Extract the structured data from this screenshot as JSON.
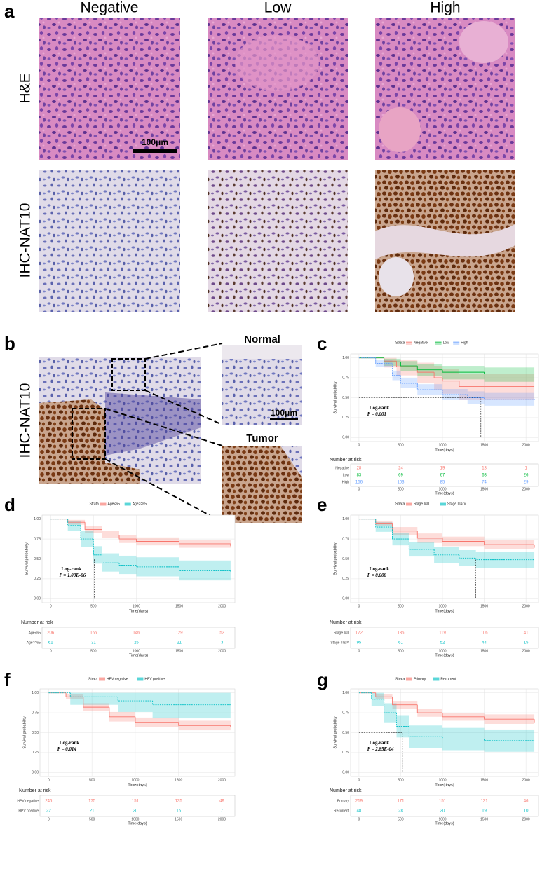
{
  "figure": {
    "a": {
      "label": "a",
      "columns": [
        "Negative",
        "Low",
        "High"
      ],
      "rows": [
        "H&E",
        "IHC-NAT10"
      ],
      "scale_bar": "100μm"
    },
    "b": {
      "label": "b",
      "row": "IHC-NAT10",
      "insets": [
        "Normal",
        "Tumor"
      ],
      "scale_bar": "100μm"
    }
  },
  "chart_data": [
    {
      "type": "survival",
      "label": "c",
      "legend_title": "Strata",
      "xlabel": "Time(days)",
      "ylabel": "Survival probability",
      "xlim": [
        -100,
        2150
      ],
      "ylim": [
        -0.05,
        1.05
      ],
      "xticks": [
        0,
        500,
        1000,
        1500,
        2000
      ],
      "yticks": [
        {
          "value": 0,
          "label": "0.00"
        },
        {
          "value": 0.25,
          "label": "0.25"
        },
        {
          "value": 0.5,
          "label": "0.50"
        },
        {
          "value": 0.75,
          "label": "0.75"
        },
        {
          "value": 1,
          "label": "1.00"
        }
      ],
      "test": "Log-rank",
      "p_label": "P = 0.001",
      "median": [
        1460,
        0.5
      ],
      "risk_title": "Number at risk",
      "series": [
        {
          "name": "Negative",
          "color": "#F8766D",
          "linestyle": "solid",
          "x": [
            0,
            300,
            450,
            700,
            900,
            1000,
            1200,
            1500,
            2100
          ],
          "values": [
            1,
            0.96,
            0.89,
            0.82,
            0.75,
            0.71,
            0.64,
            0.64,
            0.64
          ],
          "lower": [
            1,
            0.88,
            0.78,
            0.68,
            0.6,
            0.55,
            0.47,
            0.47,
            0.47
          ],
          "upper": [
            1,
            1,
            0.98,
            0.94,
            0.9,
            0.86,
            0.8,
            0.8,
            0.8
          ],
          "risk": [
            28,
            24,
            19,
            13,
            1
          ]
        },
        {
          "name": "Low",
          "color": "#00BA38",
          "linestyle": "solid",
          "x": [
            0,
            300,
            500,
            700,
            1000,
            1500,
            2100
          ],
          "values": [
            1,
            0.95,
            0.9,
            0.85,
            0.82,
            0.8,
            0.8
          ],
          "lower": [
            1,
            0.9,
            0.83,
            0.77,
            0.73,
            0.7,
            0.7
          ],
          "upper": [
            1,
            0.99,
            0.96,
            0.92,
            0.9,
            0.88,
            0.88
          ],
          "risk": [
            83,
            69,
            67,
            63,
            26
          ]
        },
        {
          "name": "High",
          "color": "#619CFF",
          "linestyle": "dashed",
          "x": [
            0,
            200,
            400,
            500,
            700,
            1000,
            1300,
            1500,
            2100
          ],
          "values": [
            1,
            0.93,
            0.78,
            0.68,
            0.6,
            0.54,
            0.5,
            0.48,
            0.47
          ],
          "lower": [
            1,
            0.89,
            0.72,
            0.62,
            0.53,
            0.47,
            0.42,
            0.4,
            0.38
          ],
          "upper": [
            1,
            0.97,
            0.84,
            0.75,
            0.67,
            0.61,
            0.58,
            0.56,
            0.55
          ],
          "risk": [
            156,
            103,
            85,
            74,
            29
          ]
        }
      ]
    },
    {
      "type": "survival",
      "label": "d",
      "legend_title": "Strata",
      "xlabel": "Time(days)",
      "ylabel": "Survival probability",
      "xlim": [
        -100,
        2150
      ],
      "ylim": [
        -0.05,
        1.05
      ],
      "xticks": [
        0,
        500,
        1000,
        1500,
        2000
      ],
      "yticks": [
        {
          "value": 0,
          "label": "0.00"
        },
        {
          "value": 0.25,
          "label": "0.25"
        },
        {
          "value": 0.5,
          "label": "0.50"
        },
        {
          "value": 0.75,
          "label": "0.75"
        },
        {
          "value": 1,
          "label": "1.00"
        }
      ],
      "test": "Log-rank",
      "p_label": "P = 1.00E-06",
      "median": [
        510,
        0.5
      ],
      "risk_title": "Number at risk",
      "series": [
        {
          "name": "Age<65",
          "color": "#F8766D",
          "linestyle": "solid",
          "x": [
            0,
            200,
            400,
            600,
            800,
            1000,
            1500,
            2100
          ],
          "values": [
            1,
            0.96,
            0.87,
            0.8,
            0.75,
            0.72,
            0.69,
            0.66
          ],
          "lower": [
            1,
            0.93,
            0.83,
            0.76,
            0.7,
            0.67,
            0.64,
            0.6
          ],
          "upper": [
            1,
            0.99,
            0.91,
            0.85,
            0.8,
            0.77,
            0.74,
            0.72
          ],
          "risk": [
            206,
            165,
            146,
            129,
            53
          ]
        },
        {
          "name": "Age>=65",
          "color": "#00BFC4",
          "linestyle": "dashed",
          "x": [
            0,
            200,
            350,
            500,
            600,
            800,
            1000,
            1500,
            2100
          ],
          "values": [
            1,
            0.92,
            0.75,
            0.55,
            0.45,
            0.42,
            0.4,
            0.35,
            0.34
          ],
          "lower": [
            1,
            0.85,
            0.65,
            0.44,
            0.34,
            0.31,
            0.28,
            0.23,
            0.22
          ],
          "upper": [
            1,
            0.98,
            0.85,
            0.66,
            0.57,
            0.54,
            0.52,
            0.48,
            0.47
          ],
          "risk": [
            61,
            31,
            25,
            21,
            3
          ]
        }
      ]
    },
    {
      "type": "survival",
      "label": "e",
      "legend_title": "Strata",
      "xlabel": "Time(days)",
      "ylabel": "Survival probability",
      "xlim": [
        -100,
        2150
      ],
      "ylim": [
        -0.05,
        1.05
      ],
      "xticks": [
        0,
        500,
        1000,
        1500,
        2000
      ],
      "yticks": [
        {
          "value": 0,
          "label": "0.00"
        },
        {
          "value": 0.25,
          "label": "0.25"
        },
        {
          "value": 0.5,
          "label": "0.50"
        },
        {
          "value": 0.75,
          "label": "0.75"
        },
        {
          "value": 1,
          "label": "1.00"
        }
      ],
      "test": "Log-rank",
      "p_label": "P = 0.008",
      "median": [
        1400,
        0.5
      ],
      "risk_title": "Number at risk",
      "series": [
        {
          "name": "Stage I&II",
          "color": "#F8766D",
          "linestyle": "solid",
          "x": [
            0,
            200,
            400,
            700,
            1000,
            1500,
            2100
          ],
          "values": [
            1,
            0.95,
            0.85,
            0.76,
            0.72,
            0.68,
            0.64
          ],
          "lower": [
            1,
            0.92,
            0.8,
            0.7,
            0.66,
            0.62,
            0.58
          ],
          "upper": [
            1,
            0.98,
            0.9,
            0.82,
            0.78,
            0.74,
            0.7
          ],
          "risk": [
            172,
            135,
            119,
            106,
            41
          ]
        },
        {
          "name": "Stage III&IV",
          "color": "#00BFC4",
          "linestyle": "dashed",
          "x": [
            0,
            200,
            400,
            600,
            900,
            1200,
            1400,
            2100
          ],
          "values": [
            1,
            0.9,
            0.75,
            0.62,
            0.55,
            0.51,
            0.49,
            0.49
          ],
          "lower": [
            1,
            0.84,
            0.67,
            0.53,
            0.45,
            0.41,
            0.39,
            0.39
          ],
          "upper": [
            1,
            0.96,
            0.83,
            0.71,
            0.65,
            0.61,
            0.59,
            0.59
          ],
          "risk": [
            95,
            61,
            52,
            44,
            15
          ]
        }
      ]
    },
    {
      "type": "survival",
      "label": "f",
      "legend_title": "Strata",
      "xlabel": "Time(days)",
      "ylabel": "Survival probability",
      "xlim": [
        -100,
        2150
      ],
      "ylim": [
        -0.05,
        1.05
      ],
      "xticks": [
        0,
        500,
        1000,
        1500,
        2000
      ],
      "yticks": [
        {
          "value": 0,
          "label": "0.00"
        },
        {
          "value": 0.25,
          "label": "0.25"
        },
        {
          "value": 0.5,
          "label": "0.50"
        },
        {
          "value": 0.75,
          "label": "0.75"
        },
        {
          "value": 1,
          "label": "1.00"
        }
      ],
      "test": "Log-rank",
      "p_label": "P = 0.014",
      "risk_title": "Number at risk",
      "series": [
        {
          "name": "HPV negative",
          "color": "#F8766D",
          "linestyle": "solid",
          "x": [
            0,
            200,
            400,
            700,
            1000,
            1500,
            2100
          ],
          "values": [
            1,
            0.95,
            0.82,
            0.7,
            0.63,
            0.59,
            0.57
          ],
          "lower": [
            1,
            0.92,
            0.77,
            0.64,
            0.57,
            0.53,
            0.51
          ],
          "upper": [
            1,
            0.98,
            0.87,
            0.76,
            0.69,
            0.65,
            0.63
          ],
          "risk": [
            245,
            175,
            151,
            135,
            49
          ]
        },
        {
          "name": "HPV positive",
          "color": "#00BFC4",
          "linestyle": "dashed",
          "x": [
            0,
            250,
            800,
            1200,
            2100
          ],
          "values": [
            1,
            0.95,
            0.9,
            0.85,
            0.85
          ],
          "lower": [
            1,
            0.85,
            0.76,
            0.68,
            0.68
          ],
          "upper": [
            1,
            1,
            1,
            1,
            1
          ],
          "risk": [
            22,
            21,
            20,
            15,
            7
          ]
        }
      ]
    },
    {
      "type": "survival",
      "label": "g",
      "legend_title": "Strata",
      "xlabel": "Time(days)",
      "ylabel": "Survival probability",
      "xlim": [
        -100,
        2150
      ],
      "ylim": [
        -0.05,
        1.05
      ],
      "xticks": [
        0,
        500,
        1000,
        1500,
        2000
      ],
      "yticks": [
        {
          "value": 0,
          "label": "0.00"
        },
        {
          "value": 0.25,
          "label": "0.25"
        },
        {
          "value": 0.5,
          "label": "0.50"
        },
        {
          "value": 0.75,
          "label": "0.75"
        },
        {
          "value": 1,
          "label": "1.00"
        }
      ],
      "test": "Log-rank",
      "p_label": "P = 2.85E-04",
      "median": [
        520,
        0.5
      ],
      "risk_title": "Number at risk",
      "series": [
        {
          "name": "Primary",
          "color": "#F8766D",
          "linestyle": "solid",
          "x": [
            0,
            200,
            400,
            700,
            1000,
            1500,
            2100
          ],
          "values": [
            1,
            0.95,
            0.85,
            0.75,
            0.7,
            0.67,
            0.63
          ],
          "lower": [
            1,
            0.92,
            0.8,
            0.7,
            0.65,
            0.61,
            0.57
          ],
          "upper": [
            1,
            0.98,
            0.9,
            0.8,
            0.75,
            0.73,
            0.69
          ],
          "risk": [
            219,
            171,
            151,
            131,
            46
          ]
        },
        {
          "name": "Recurrent",
          "color": "#00BFC4",
          "linestyle": "dashed",
          "x": [
            0,
            150,
            300,
            450,
            600,
            1000,
            1500,
            2100
          ],
          "values": [
            1,
            0.92,
            0.75,
            0.58,
            0.45,
            0.42,
            0.4,
            0.4
          ],
          "lower": [
            1,
            0.83,
            0.63,
            0.44,
            0.31,
            0.28,
            0.26,
            0.26
          ],
          "upper": [
            1,
            1,
            0.87,
            0.72,
            0.59,
            0.56,
            0.54,
            0.54
          ],
          "risk": [
            48,
            28,
            20,
            19,
            10
          ]
        }
      ]
    }
  ]
}
